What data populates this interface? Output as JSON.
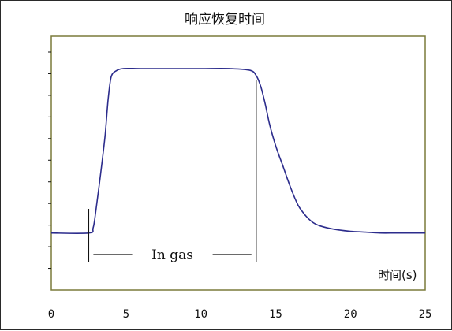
{
  "chart_data": {
    "type": "line",
    "title": "响应恢复时间",
    "xlabel": "时间(s)",
    "ylabel": "",
    "xlim": [
      0,
      25
    ],
    "x_ticks": [
      "0",
      "5",
      "10",
      "15",
      "20",
      "25"
    ],
    "y_tick_count": 11,
    "grid": false,
    "legend": "none",
    "plot_border_color": "#7a7a3a",
    "line_color": "#2c2c8c",
    "series": [
      {
        "x": [
          0,
          2.5,
          2.8,
          3.0,
          3.3,
          3.6,
          3.8,
          4.0,
          4.3,
          4.8,
          6,
          8,
          10,
          12,
          13.3,
          13.7,
          14.0,
          14.3,
          14.6,
          15.0,
          15.5,
          16.0,
          16.5,
          17.0,
          17.5,
          18,
          19,
          20,
          21,
          22,
          23,
          24,
          25
        ],
        "y": [
          0.06,
          0.06,
          0.09,
          0.2,
          0.4,
          0.62,
          0.82,
          0.95,
          0.985,
          1.0,
          1.0,
          1.0,
          1.0,
          1.0,
          0.99,
          0.96,
          0.9,
          0.8,
          0.68,
          0.56,
          0.44,
          0.32,
          0.22,
          0.16,
          0.12,
          0.1,
          0.08,
          0.07,
          0.065,
          0.06,
          0.06,
          0.06,
          0.06
        ]
      }
    ],
    "annotation": {
      "text": "In gas",
      "x_start": 2.5,
      "x_end": 13.7
    }
  }
}
